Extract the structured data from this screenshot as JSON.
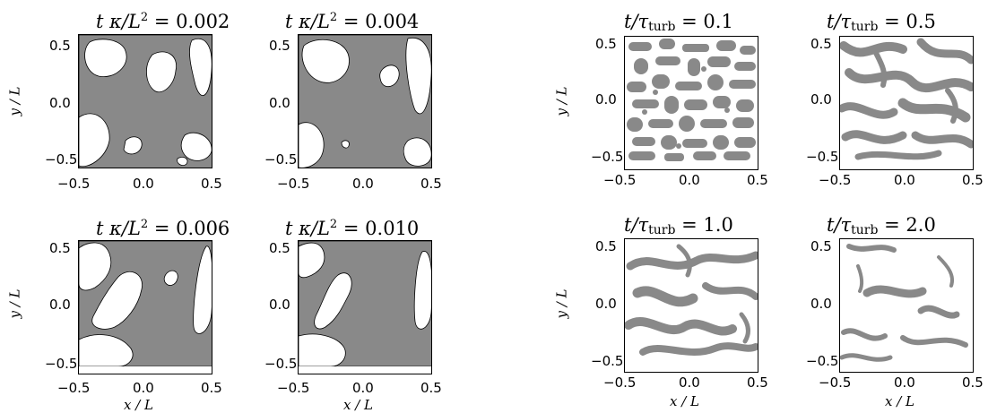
{
  "fill_color": "#898989",
  "diffusion_panels": [
    {
      "t_value": "0.002"
    },
    {
      "t_value": "0.004"
    },
    {
      "t_value": "0.006"
    },
    {
      "t_value": "0.010"
    }
  ],
  "turbulence_panels": [
    {
      "t_value": "0.1"
    },
    {
      "t_value": "0.5"
    },
    {
      "t_value": "1.0"
    },
    {
      "t_value": "2.0"
    }
  ],
  "axes": {
    "x_ticks": [
      "−0.5",
      "0.0",
      "0.5"
    ],
    "y_ticks": [
      "0.5",
      "0.0",
      "−0.5"
    ],
    "x_label": "x / L",
    "y_label": "y / L"
  },
  "title_parts": {
    "diff_prefix": "t κ/L",
    "diff_sup": "2",
    "turb_prefix": "t/τ",
    "turb_sub": "turb",
    "equals": "="
  }
}
